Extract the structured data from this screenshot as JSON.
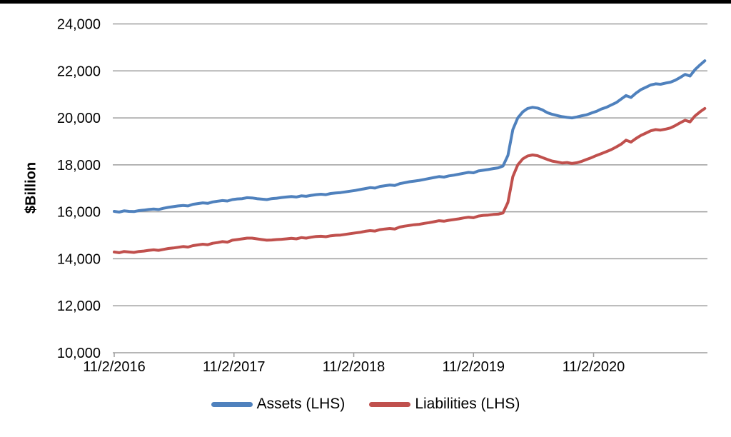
{
  "colors": {
    "background": "#ffffff",
    "top_bar": "#000000",
    "gridline": "#9d9d9d",
    "axis": "#9d9d9d",
    "text": "#000000",
    "assets_line": "#4F81BD",
    "liabilities_line": "#C0504D"
  },
  "chart_data": {
    "type": "line",
    "title": "",
    "xlabel": "",
    "ylabel": "$Billion",
    "ylim": [
      10000,
      24000
    ],
    "yticks": [
      10000,
      12000,
      14000,
      16000,
      18000,
      20000,
      22000,
      24000
    ],
    "ytick_labels": [
      "10,000",
      "12,000",
      "14,000",
      "16,000",
      "18,000",
      "20,000",
      "22,000",
      "24,000"
    ],
    "grid": "horizontal",
    "legend_position": "bottom",
    "x_axis": {
      "tick_labels": [
        "11/2/2016",
        "11/2/2017",
        "11/2/2018",
        "11/2/2019",
        "11/2/2020"
      ]
    },
    "x_start_date": "11/2/2016",
    "x_interval_days": 15,
    "series": [
      {
        "name": "Assets (LHS)",
        "color": "#4F81BD",
        "values": [
          16020,
          15990,
          16040,
          16020,
          16010,
          16050,
          16070,
          16100,
          16120,
          16100,
          16150,
          16190,
          16220,
          16250,
          16270,
          16250,
          16320,
          16350,
          16380,
          16360,
          16420,
          16450,
          16480,
          16460,
          16520,
          16550,
          16560,
          16600,
          16590,
          16560,
          16540,
          16520,
          16560,
          16580,
          16610,
          16630,
          16650,
          16630,
          16680,
          16660,
          16700,
          16730,
          16750,
          16730,
          16780,
          16800,
          16820,
          16850,
          16880,
          16910,
          16950,
          16990,
          17030,
          17010,
          17080,
          17110,
          17140,
          17120,
          17200,
          17240,
          17280,
          17310,
          17340,
          17380,
          17420,
          17460,
          17500,
          17480,
          17530,
          17560,
          17600,
          17640,
          17680,
          17660,
          17740,
          17770,
          17800,
          17840,
          17870,
          17950,
          18400,
          19500,
          20000,
          20250,
          20400,
          20450,
          20420,
          20340,
          20220,
          20150,
          20100,
          20050,
          20020,
          20000,
          20040,
          20090,
          20130,
          20210,
          20280,
          20380,
          20450,
          20550,
          20650,
          20800,
          20950,
          20870,
          21050,
          21200,
          21300,
          21400,
          21450,
          21430,
          21480,
          21520,
          21600,
          21720,
          21850,
          21780,
          22050,
          22250,
          22430
        ]
      },
      {
        "name": "Liabilities (LHS)",
        "color": "#C0504D",
        "values": [
          14290,
          14260,
          14310,
          14290,
          14270,
          14310,
          14330,
          14360,
          14380,
          14360,
          14400,
          14440,
          14460,
          14490,
          14520,
          14500,
          14560,
          14590,
          14620,
          14600,
          14660,
          14690,
          14730,
          14710,
          14790,
          14820,
          14850,
          14880,
          14880,
          14850,
          14820,
          14790,
          14800,
          14820,
          14830,
          14850,
          14870,
          14850,
          14900,
          14880,
          14920,
          14950,
          14960,
          14940,
          14980,
          15000,
          15010,
          15040,
          15070,
          15100,
          15130,
          15170,
          15200,
          15180,
          15240,
          15270,
          15290,
          15270,
          15350,
          15390,
          15420,
          15450,
          15470,
          15510,
          15540,
          15580,
          15620,
          15600,
          15640,
          15670,
          15700,
          15740,
          15770,
          15750,
          15820,
          15850,
          15860,
          15890,
          15900,
          15950,
          16400,
          17500,
          18000,
          18250,
          18380,
          18420,
          18390,
          18310,
          18230,
          18160,
          18120,
          18080,
          18100,
          18060,
          18090,
          18150,
          18230,
          18310,
          18400,
          18480,
          18560,
          18650,
          18760,
          18880,
          19050,
          18970,
          19120,
          19250,
          19350,
          19450,
          19500,
          19480,
          19520,
          19570,
          19670,
          19790,
          19900,
          19830,
          20080,
          20250,
          20400
        ]
      }
    ]
  }
}
